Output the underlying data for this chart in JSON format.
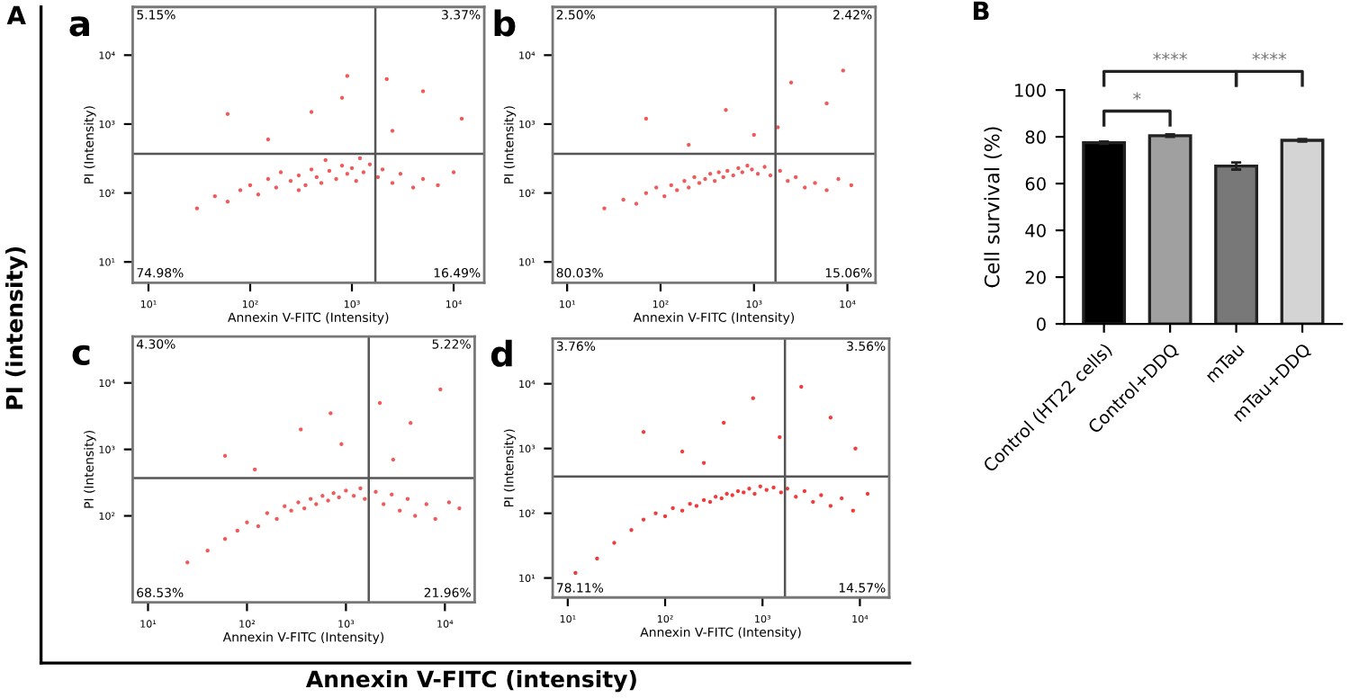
{
  "chart_data": [
    {
      "type": "scatter",
      "title": "a",
      "xlabel": "Annexin V-FITC (Intensity)",
      "ylabel": "PI (Intensity)",
      "log": "xy",
      "marker": "circle",
      "grid": false,
      "xlim": [
        7,
        20000
      ],
      "ylim": [
        5,
        50000
      ],
      "xticks": [
        {
          "value": 10,
          "label": "10¹"
        },
        {
          "value": 100,
          "label": "10²"
        },
        {
          "value": 1000,
          "label": "10³"
        },
        {
          "value": 10000,
          "label": "10⁴"
        }
      ],
      "yticks": [
        {
          "value": 10,
          "label": "10¹"
        },
        {
          "value": 100,
          "label": "10²"
        },
        {
          "value": 1000,
          "label": "10³"
        },
        {
          "value": 10000,
          "label": "10⁴"
        }
      ],
      "ref_lines": [
        {
          "axis": "x",
          "value": 1700,
          "color": "#555555"
        },
        {
          "axis": "y",
          "value": 370,
          "color": "#555555"
        }
      ],
      "annotations": [
        "5.15%",
        "3.37%",
        "74.98%",
        "16.49%",
        "A",
        "PI (intensity)",
        "Annexin V-FITC (intensity)"
      ],
      "series": [
        {
          "color": "#f05a5a",
          "x": [
            30,
            45,
            60,
            80,
            100,
            120,
            150,
            180,
            200,
            250,
            300,
            350,
            400,
            450,
            500,
            600,
            700,
            800,
            900,
            1000,
            1100,
            1300,
            1500,
            1800,
            2000,
            2500,
            3000,
            4000,
            5000,
            7000,
            10000,
            150,
            400,
            900,
            2500,
            5000,
            12000,
            60,
            2200,
            800,
            300,
            550,
            1200
          ],
          "values": [
            60,
            90,
            75,
            110,
            130,
            95,
            160,
            120,
            200,
            150,
            180,
            130,
            220,
            170,
            140,
            210,
            160,
            250,
            190,
            230,
            150,
            200,
            260,
            170,
            220,
            140,
            190,
            120,
            160,
            130,
            200,
            600,
            1500,
            5000,
            800,
            3000,
            1200,
            1400,
            4500,
            2400,
            110,
            300,
            320
          ]
        }
      ]
    },
    {
      "type": "scatter",
      "title": "b",
      "xlabel": "Annexin V-FITC (Intensity)",
      "ylabel": "PI (Intensity)",
      "log": "xy",
      "marker": "circle",
      "grid": false,
      "xlim": [
        7,
        20000
      ],
      "ylim": [
        5,
        50000
      ],
      "xticks": [
        {
          "value": 10,
          "label": "10¹"
        },
        {
          "value": 100,
          "label": "10²"
        },
        {
          "value": 1000,
          "label": "10³"
        },
        {
          "value": 10000,
          "label": "10⁴"
        }
      ],
      "yticks": [
        {
          "value": 10,
          "label": "10¹"
        },
        {
          "value": 100,
          "label": "10²"
        },
        {
          "value": 1000,
          "label": "10³"
        },
        {
          "value": 10000,
          "label": "10⁴"
        }
      ],
      "ref_lines": [
        {
          "axis": "x",
          "value": 1700,
          "color": "#555555"
        },
        {
          "axis": "y",
          "value": 370,
          "color": "#555555"
        }
      ],
      "annotations": [
        "2.50%",
        "2.42%",
        "80.03%",
        "15.06%"
      ],
      "series": [
        {
          "color": "#f05a5a",
          "x": [
            25,
            40,
            55,
            70,
            90,
            110,
            130,
            150,
            180,
            200,
            230,
            260,
            300,
            340,
            380,
            420,
            470,
            520,
            600,
            680,
            750,
            850,
            950,
            1100,
            1300,
            1500,
            1900,
            2300,
            2800,
            3500,
            4500,
            6000,
            8000,
            11000,
            200,
            500,
            1000,
            2500,
            6000,
            9000,
            70,
            1800
          ],
          "values": [
            60,
            80,
            70,
            100,
            120,
            90,
            130,
            110,
            150,
            120,
            170,
            140,
            160,
            190,
            150,
            200,
            170,
            210,
            180,
            230,
            200,
            250,
            220,
            190,
            240,
            180,
            210,
            150,
            170,
            120,
            140,
            110,
            160,
            130,
            500,
            1600,
            700,
            4000,
            2000,
            6000,
            1200,
            900
          ]
        }
      ]
    },
    {
      "type": "scatter",
      "title": "c",
      "xlabel": "Annexin V-FITC (Intensity)",
      "ylabel": "PI (Intensity)",
      "log": "xy",
      "marker": "circle",
      "grid": false,
      "xlim": [
        7,
        20000
      ],
      "ylim": [
        5,
        50000
      ],
      "xticks": [
        {
          "value": 10,
          "label": "10¹"
        },
        {
          "value": 100,
          "label": "10²"
        },
        {
          "value": 1000,
          "label": "10³"
        },
        {
          "value": 10000,
          "label": "10⁴"
        }
      ],
      "yticks": [
        {
          "value": 100,
          "label": "10²"
        },
        {
          "value": 1000,
          "label": "10³"
        },
        {
          "value": 10000,
          "label": "10⁴"
        }
      ],
      "ref_lines": [
        {
          "axis": "x",
          "value": 1700,
          "color": "#555555"
        },
        {
          "axis": "y",
          "value": 370,
          "color": "#555555"
        }
      ],
      "annotations": [
        "4.30%",
        "5.22%",
        "68.53%",
        "21.96%"
      ],
      "series": [
        {
          "color": "#f05a5a",
          "x": [
            25,
            40,
            60,
            80,
            100,
            130,
            160,
            200,
            240,
            280,
            330,
            380,
            440,
            500,
            580,
            660,
            750,
            850,
            1000,
            1200,
            1400,
            1550,
            2000,
            2400,
            2900,
            3500,
            4200,
            5000,
            6500,
            8000,
            11000,
            14000,
            120,
            350,
            900,
            2200,
            4500,
            9000,
            60,
            700,
            3000
          ],
          "values": [
            20,
            30,
            45,
            60,
            80,
            70,
            110,
            90,
            140,
            120,
            160,
            130,
            180,
            150,
            200,
            170,
            220,
            190,
            240,
            200,
            260,
            180,
            230,
            150,
            210,
            120,
            180,
            100,
            150,
            90,
            160,
            130,
            500,
            2000,
            1200,
            5000,
            2500,
            8000,
            800,
            3500,
            700
          ]
        }
      ]
    },
    {
      "type": "scatter",
      "title": "d",
      "xlabel": "Annexin V-FITC (Intensity)",
      "ylabel": "PI (Intensity)",
      "log": "xy",
      "marker": "circle",
      "grid": false,
      "xlim": [
        7,
        20000
      ],
      "ylim": [
        5,
        50000
      ],
      "xticks": [
        {
          "value": 10,
          "label": "10¹"
        },
        {
          "value": 100,
          "label": "10²"
        },
        {
          "value": 1000,
          "label": "10³"
        },
        {
          "value": 10000,
          "label": "10⁴"
        }
      ],
      "yticks": [
        {
          "value": 10,
          "label": "10¹"
        },
        {
          "value": 100,
          "label": "10²"
        },
        {
          "value": 1000,
          "label": "10³"
        },
        {
          "value": 10000,
          "label": "10⁴"
        }
      ],
      "ref_lines": [
        {
          "axis": "x",
          "value": 1700,
          "color": "#555555"
        },
        {
          "axis": "y",
          "value": 370,
          "color": "#555555"
        }
      ],
      "annotations": [
        "3.76%",
        "3.56%",
        "78.11%",
        "14.57%"
      ],
      "series": [
        {
          "color": "#f03c3c",
          "x": [
            12,
            20,
            30,
            45,
            60,
            80,
            100,
            120,
            150,
            180,
            210,
            250,
            290,
            330,
            380,
            430,
            490,
            560,
            640,
            730,
            830,
            950,
            1100,
            1300,
            1550,
            1800,
            2200,
            2700,
            3300,
            4000,
            5000,
            6500,
            8500,
            12000,
            150,
            400,
            800,
            1500,
            2500,
            5000,
            9000,
            60,
            250
          ],
          "values": [
            12,
            20,
            35,
            55,
            80,
            100,
            90,
            120,
            110,
            140,
            130,
            160,
            150,
            180,
            170,
            200,
            190,
            220,
            210,
            240,
            200,
            260,
            230,
            250,
            210,
            240,
            180,
            220,
            150,
            190,
            130,
            170,
            110,
            200,
            900,
            2500,
            6000,
            1500,
            9000,
            3000,
            1000,
            1800,
            600
          ]
        }
      ]
    },
    {
      "type": "bar",
      "title": "B",
      "ylabel": "Cell survival (%)",
      "categories": [
        "Control (HT22 cells)",
        "Control+DDQ",
        "mTau",
        "mTau+DDQ"
      ],
      "values": [
        77.5,
        80.5,
        67.5,
        78.5
      ],
      "errors": [
        0.5,
        0.5,
        1.5,
        0.5
      ],
      "colors": [
        "#000000",
        "#a0a0a0",
        "#787878",
        "#d4d4d4"
      ],
      "ylim": [
        0,
        100
      ],
      "yticks": [
        0,
        20,
        40,
        60,
        80,
        100
      ],
      "grid": false,
      "annotations": [
        "*",
        "****",
        "****"
      ]
    }
  ]
}
